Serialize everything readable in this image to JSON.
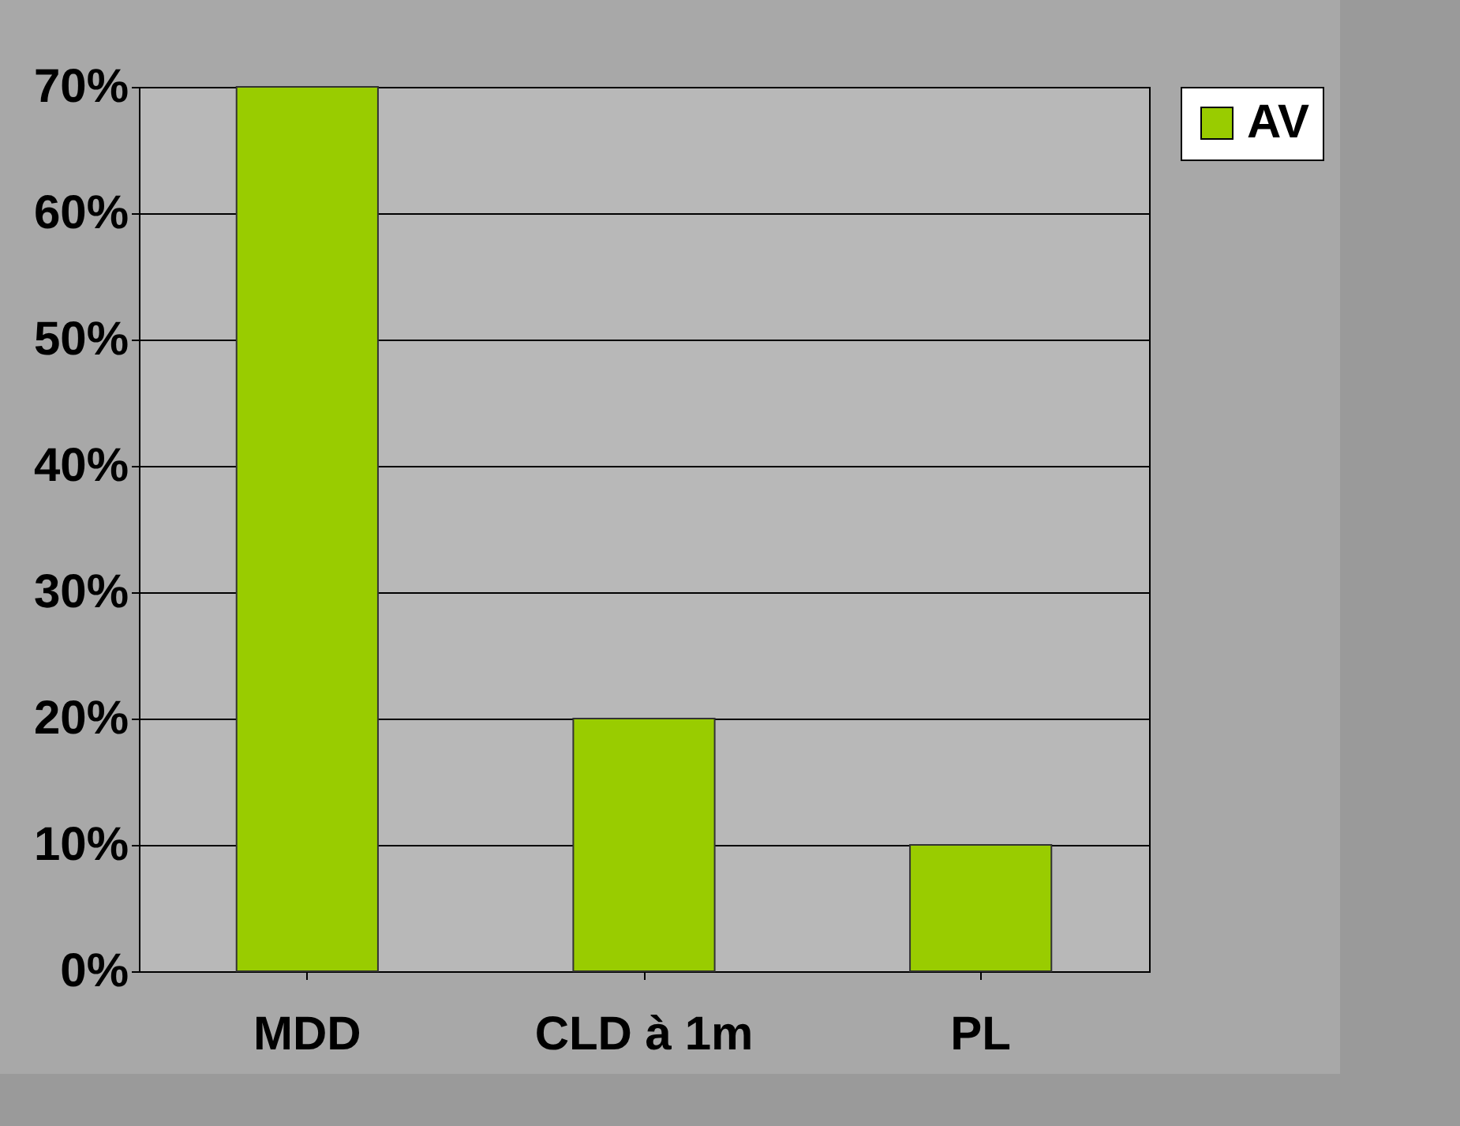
{
  "chart_data": {
    "type": "bar",
    "categories": [
      "MDD",
      "CLD à 1m",
      "PL"
    ],
    "series": [
      {
        "name": "AV",
        "color": "#99cc00",
        "values": [
          70,
          20,
          10
        ]
      }
    ],
    "ylim": [
      0,
      70
    ],
    "yticks": [
      {
        "value": 0,
        "label": "0%"
      },
      {
        "value": 10,
        "label": "10%"
      },
      {
        "value": 20,
        "label": "20%"
      },
      {
        "value": 30,
        "label": "30%"
      },
      {
        "value": 40,
        "label": "40%"
      },
      {
        "value": 50,
        "label": "50%"
      },
      {
        "value": 60,
        "label": "60%"
      },
      {
        "value": 70,
        "label": "70%"
      }
    ],
    "grid": "y",
    "legend": "right"
  }
}
